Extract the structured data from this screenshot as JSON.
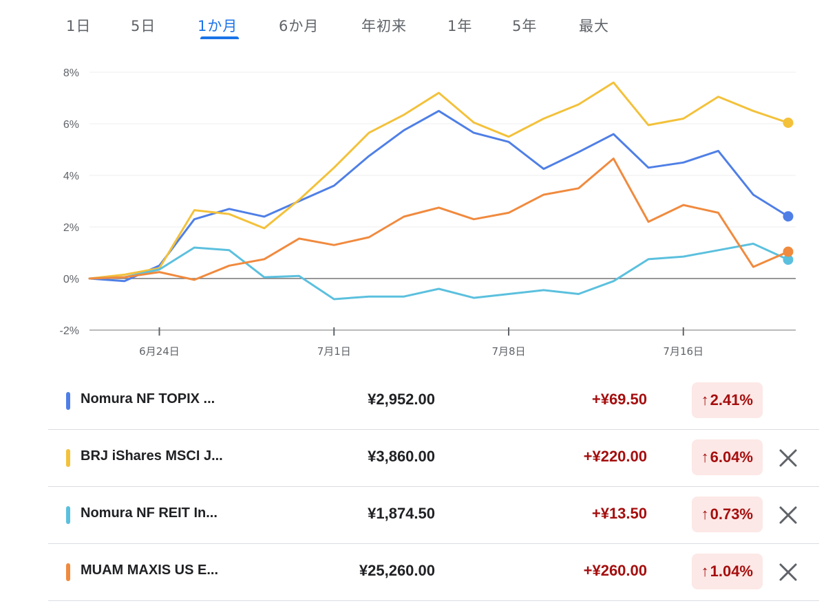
{
  "tabs": [
    {
      "label": "1日",
      "active": false
    },
    {
      "label": "5日",
      "active": false
    },
    {
      "label": "1か月",
      "active": true
    },
    {
      "label": "6か月",
      "active": false
    },
    {
      "label": "年初来",
      "active": false
    },
    {
      "label": "1年",
      "active": false
    },
    {
      "label": "5年",
      "active": false
    },
    {
      "label": "最大",
      "active": false
    }
  ],
  "chart_data": {
    "type": "line",
    "title": "",
    "xlabel": "",
    "ylabel": "",
    "ylim": [
      -2,
      8
    ],
    "y_ticks": [
      "8%",
      "6%",
      "4%",
      "2%",
      "0%",
      "-2%"
    ],
    "x_tick_labels": [
      {
        "label": "6月24日",
        "index": 2
      },
      {
        "label": "7月1日",
        "index": 7
      },
      {
        "label": "7月8日",
        "index": 12
      },
      {
        "label": "7月16日",
        "index": 17
      }
    ],
    "grid": true,
    "series": [
      {
        "name": "Nomura NF TOPIX ...",
        "color": "#4f7fe6",
        "values": [
          0,
          -0.1,
          0.5,
          2.3,
          2.7,
          2.4,
          3.0,
          3.6,
          4.75,
          5.75,
          6.5,
          5.65,
          5.3,
          4.25,
          4.9,
          5.6,
          4.3,
          4.5,
          4.95,
          3.25,
          2.41
        ]
      },
      {
        "name": "BRJ iShares MSCI J...",
        "color": "#f3c13a",
        "values": [
          0,
          0.15,
          0.4,
          2.65,
          2.5,
          1.95,
          3.05,
          4.3,
          5.65,
          6.35,
          7.2,
          6.05,
          5.5,
          6.2,
          6.75,
          7.6,
          5.95,
          6.2,
          7.05,
          6.5,
          6.04
        ]
      },
      {
        "name": "Nomura NF REIT In...",
        "color": "#5bc0de",
        "values": [
          0,
          0.05,
          0.35,
          1.2,
          1.1,
          0.05,
          0.1,
          -0.8,
          -0.7,
          -0.7,
          -0.4,
          -0.75,
          -0.6,
          -0.45,
          -0.6,
          -0.1,
          0.75,
          0.85,
          1.1,
          1.35,
          0.73
        ]
      },
      {
        "name": "MUAM MAXIS US E...",
        "color": "#f08a3e",
        "values": [
          0,
          0.05,
          0.25,
          -0.05,
          0.5,
          0.75,
          1.55,
          1.3,
          1.6,
          2.4,
          2.75,
          2.3,
          2.55,
          3.25,
          3.5,
          4.65,
          2.2,
          2.85,
          2.55,
          0.45,
          1.04
        ]
      }
    ]
  },
  "rows": [
    {
      "name": "Nomura NF TOPIX ...",
      "price": "¥2,952.00",
      "change": "+¥69.50",
      "pct": "2.41%",
      "arrow": "↑",
      "color": "#4f7fe6",
      "closable": false
    },
    {
      "name": "BRJ iShares MSCI J...",
      "price": "¥3,860.00",
      "change": "+¥220.00",
      "pct": "6.04%",
      "arrow": "↑",
      "color": "#f3c13a",
      "closable": true
    },
    {
      "name": "Nomura NF REIT In...",
      "price": "¥1,874.50",
      "change": "+¥13.50",
      "pct": "0.73%",
      "arrow": "↑",
      "color": "#5bc0de",
      "closable": true
    },
    {
      "name": "MUAM MAXIS US E...",
      "price": "¥25,260.00",
      "change": "+¥260.00",
      "pct": "1.04%",
      "arrow": "↑",
      "color": "#f08a3e",
      "closable": true
    }
  ],
  "icons": {
    "close": "close-icon",
    "up_arrow": "arrow-up-icon"
  }
}
